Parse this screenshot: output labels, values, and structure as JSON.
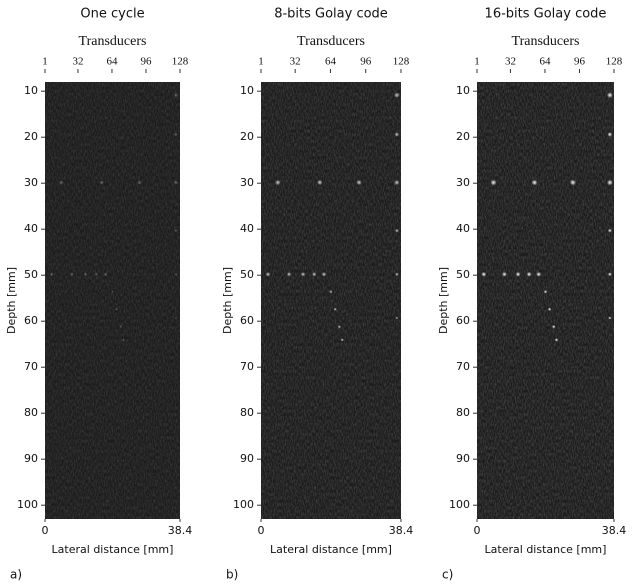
{
  "panels": [
    {
      "title": "One cycle",
      "top_axis": {
        "label": "Transducers",
        "ticks": [
          1,
          32,
          64,
          96,
          128
        ],
        "lim": [
          1,
          128
        ]
      },
      "y_axis": {
        "label": "Depth [mm]",
        "ticks": [
          10,
          20,
          30,
          40,
          50,
          60,
          70,
          80,
          90,
          100
        ],
        "lim": [
          8,
          103
        ]
      },
      "x_axis": {
        "label": "Lateral distance [mm]",
        "ticks": [
          0,
          38.4
        ],
        "lim": [
          0,
          38.4
        ]
      },
      "letter": "a)"
    },
    {
      "title": "8-bits Golay code",
      "top_axis": {
        "label": "Transducers",
        "ticks": [
          1,
          32,
          64,
          96,
          128
        ],
        "lim": [
          1,
          128
        ]
      },
      "y_axis": {
        "label": "Depth [mm]",
        "ticks": [
          10,
          20,
          30,
          40,
          50,
          60,
          70,
          80,
          90,
          100
        ],
        "lim": [
          8,
          103
        ]
      },
      "x_axis": {
        "label": "Lateral distance [mm]",
        "ticks": [
          0,
          38.4
        ],
        "lim": [
          0,
          38.4
        ]
      },
      "letter": "b)"
    },
    {
      "title": "16-bits Golay code",
      "top_axis": {
        "label": "Transducers",
        "ticks": [
          1,
          32,
          64,
          96,
          128
        ],
        "lim": [
          1,
          128
        ]
      },
      "y_axis": {
        "label": "Depth [mm]",
        "ticks": [
          10,
          20,
          30,
          40,
          50,
          60,
          70,
          80,
          90,
          100
        ],
        "lim": [
          8,
          103
        ]
      },
      "x_axis": {
        "label": "Lateral distance [mm]",
        "ticks": [
          0,
          38.4
        ],
        "lim": [
          0,
          38.4
        ]
      },
      "letter": "c)"
    }
  ]
}
